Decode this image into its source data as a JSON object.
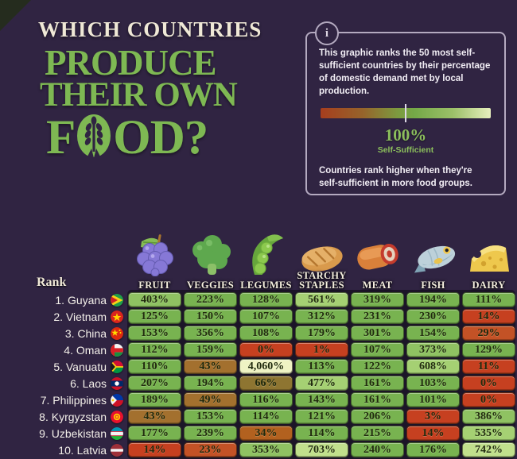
{
  "title": {
    "line1": "WHICH COUNTRIES",
    "line2": "PRODUCE",
    "line3": "THEIR OWN",
    "line4_pre": "F",
    "line4_post": "OD?"
  },
  "info_box": {
    "icon_glyph": "i",
    "paragraph1": "This graphic ranks the 50 most self-sufficient countries by their percentage of domestic demand met by local production.",
    "scale_value": "100%",
    "scale_caption": "Self-Sufficient",
    "paragraph2": "Countries rank higher when they're self-sufficient in more food groups."
  },
  "legend_colors": {
    "left": "#a63e1e",
    "middle": "#74a847",
    "right": "#e7efbe"
  },
  "palette": {
    "green": "#78b350",
    "green2": "#8fc262",
    "green3": "#a5d073",
    "green4": "#c1e08c",
    "paleyellow": "#eff3c4",
    "red": "#c64020",
    "redorange": "#c35226",
    "rust": "#b2611f",
    "brown": "#a3702e",
    "olive": "#8e7531"
  },
  "table": {
    "rank_header": "Rank",
    "columns": [
      {
        "label": "FRUIT",
        "icon": "grapes-icon"
      },
      {
        "label": "VEGGIES",
        "icon": "broccoli-icon"
      },
      {
        "label": "LEGUMES",
        "icon": "peas-icon"
      },
      {
        "label": "STARCHY STAPLES",
        "icon": "bread-icon"
      },
      {
        "label": "MEAT",
        "icon": "meat-icon"
      },
      {
        "label": "FISH",
        "icon": "fish-icon"
      },
      {
        "label": "DAIRY",
        "icon": "cheese-icon"
      }
    ],
    "rows": [
      {
        "rank": "1.",
        "country": "Guyana",
        "flag": "guyana",
        "cells": [
          {
            "v": "403%",
            "tone": "green2"
          },
          {
            "v": "223%",
            "tone": "green"
          },
          {
            "v": "128%",
            "tone": "green"
          },
          {
            "v": "561%",
            "tone": "green3"
          },
          {
            "v": "319%",
            "tone": "green"
          },
          {
            "v": "194%",
            "tone": "green"
          },
          {
            "v": "111%",
            "tone": "green"
          }
        ]
      },
      {
        "rank": "2.",
        "country": "Vietnam",
        "flag": "vietnam",
        "cells": [
          {
            "v": "125%",
            "tone": "green"
          },
          {
            "v": "150%",
            "tone": "green"
          },
          {
            "v": "107%",
            "tone": "green"
          },
          {
            "v": "312%",
            "tone": "green"
          },
          {
            "v": "231%",
            "tone": "green"
          },
          {
            "v": "230%",
            "tone": "green"
          },
          {
            "v": "14%",
            "tone": "red"
          }
        ]
      },
      {
        "rank": "3.",
        "country": "China",
        "flag": "china",
        "cells": [
          {
            "v": "153%",
            "tone": "green"
          },
          {
            "v": "356%",
            "tone": "green"
          },
          {
            "v": "108%",
            "tone": "green"
          },
          {
            "v": "179%",
            "tone": "green"
          },
          {
            "v": "301%",
            "tone": "green"
          },
          {
            "v": "154%",
            "tone": "green"
          },
          {
            "v": "29%",
            "tone": "redorange"
          }
        ]
      },
      {
        "rank": "4.",
        "country": "Oman",
        "flag": "oman",
        "cells": [
          {
            "v": "112%",
            "tone": "green"
          },
          {
            "v": "159%",
            "tone": "green"
          },
          {
            "v": "0%",
            "tone": "red"
          },
          {
            "v": "1%",
            "tone": "red"
          },
          {
            "v": "107%",
            "tone": "green"
          },
          {
            "v": "373%",
            "tone": "green2"
          },
          {
            "v": "129%",
            "tone": "green"
          }
        ]
      },
      {
        "rank": "5.",
        "country": "Vanuatu",
        "flag": "vanuatu",
        "cells": [
          {
            "v": "110%",
            "tone": "green"
          },
          {
            "v": "43%",
            "tone": "brown"
          },
          {
            "v": "4,060%",
            "tone": "paleyellow"
          },
          {
            "v": "113%",
            "tone": "green"
          },
          {
            "v": "122%",
            "tone": "green"
          },
          {
            "v": "608%",
            "tone": "green3"
          },
          {
            "v": "11%",
            "tone": "red"
          }
        ]
      },
      {
        "rank": "6.",
        "country": "Laos",
        "flag": "laos",
        "cells": [
          {
            "v": "207%",
            "tone": "green"
          },
          {
            "v": "194%",
            "tone": "green"
          },
          {
            "v": "66%",
            "tone": "olive"
          },
          {
            "v": "477%",
            "tone": "green3"
          },
          {
            "v": "161%",
            "tone": "green"
          },
          {
            "v": "103%",
            "tone": "green"
          },
          {
            "v": "0%",
            "tone": "red"
          }
        ]
      },
      {
        "rank": "7.",
        "country": "Philippines",
        "flag": "philippines",
        "cells": [
          {
            "v": "189%",
            "tone": "green"
          },
          {
            "v": "49%",
            "tone": "brown"
          },
          {
            "v": "116%",
            "tone": "green"
          },
          {
            "v": "143%",
            "tone": "green"
          },
          {
            "v": "161%",
            "tone": "green"
          },
          {
            "v": "101%",
            "tone": "green"
          },
          {
            "v": "0%",
            "tone": "red"
          }
        ]
      },
      {
        "rank": "8.",
        "country": "Kyrgyzstan",
        "flag": "kyrgyzstan",
        "cells": [
          {
            "v": "43%",
            "tone": "brown"
          },
          {
            "v": "153%",
            "tone": "green"
          },
          {
            "v": "114%",
            "tone": "green"
          },
          {
            "v": "121%",
            "tone": "green"
          },
          {
            "v": "206%",
            "tone": "green"
          },
          {
            "v": "3%",
            "tone": "red"
          },
          {
            "v": "386%",
            "tone": "green2"
          }
        ]
      },
      {
        "rank": "9.",
        "country": "Uzbekistan",
        "flag": "uzbekistan",
        "cells": [
          {
            "v": "177%",
            "tone": "green"
          },
          {
            "v": "239%",
            "tone": "green"
          },
          {
            "v": "34%",
            "tone": "rust"
          },
          {
            "v": "114%",
            "tone": "green"
          },
          {
            "v": "215%",
            "tone": "green"
          },
          {
            "v": "14%",
            "tone": "red"
          },
          {
            "v": "535%",
            "tone": "green3"
          }
        ]
      },
      {
        "rank": "10.",
        "country": "Latvia",
        "flag": "latvia",
        "cells": [
          {
            "v": "14%",
            "tone": "red"
          },
          {
            "v": "23%",
            "tone": "redorange"
          },
          {
            "v": "353%",
            "tone": "green2"
          },
          {
            "v": "703%",
            "tone": "green4"
          },
          {
            "v": "240%",
            "tone": "green"
          },
          {
            "v": "176%",
            "tone": "green"
          },
          {
            "v": "742%",
            "tone": "green4"
          }
        ]
      }
    ]
  },
  "chart_data": {
    "type": "table",
    "title": "Which Countries Produce Their Own Food?",
    "columns": [
      "Rank",
      "Fruit",
      "Veggies",
      "Legumes",
      "Starchy Staples",
      "Meat",
      "Fish",
      "Dairy"
    ],
    "rows": [
      [
        "1. Guyana",
        "403%",
        "223%",
        "128%",
        "561%",
        "319%",
        "194%",
        "111%"
      ],
      [
        "2. Vietnam",
        "125%",
        "150%",
        "107%",
        "312%",
        "231%",
        "230%",
        "14%"
      ],
      [
        "3. China",
        "153%",
        "356%",
        "108%",
        "179%",
        "301%",
        "154%",
        "29%"
      ],
      [
        "4. Oman",
        "112%",
        "159%",
        "0%",
        "1%",
        "107%",
        "373%",
        "129%"
      ],
      [
        "5. Vanuatu",
        "110%",
        "43%",
        "4,060%",
        "113%",
        "122%",
        "608%",
        "11%"
      ],
      [
        "6. Laos",
        "207%",
        "194%",
        "66%",
        "477%",
        "161%",
        "103%",
        "0%"
      ],
      [
        "7. Philippines",
        "189%",
        "49%",
        "116%",
        "143%",
        "161%",
        "101%",
        "0%"
      ],
      [
        "8. Kyrgyzstan",
        "43%",
        "153%",
        "114%",
        "121%",
        "206%",
        "3%",
        "386%"
      ],
      [
        "9. Uzbekistan",
        "177%",
        "239%",
        "34%",
        "114%",
        "215%",
        "14%",
        "535%"
      ],
      [
        "10. Latvia",
        "14%",
        "23%",
        "353%",
        "703%",
        "240%",
        "176%",
        "742%"
      ]
    ],
    "legend": "Gradient from red (low self-sufficiency) to light green (high), 100% Self-Sufficient marked at center"
  }
}
